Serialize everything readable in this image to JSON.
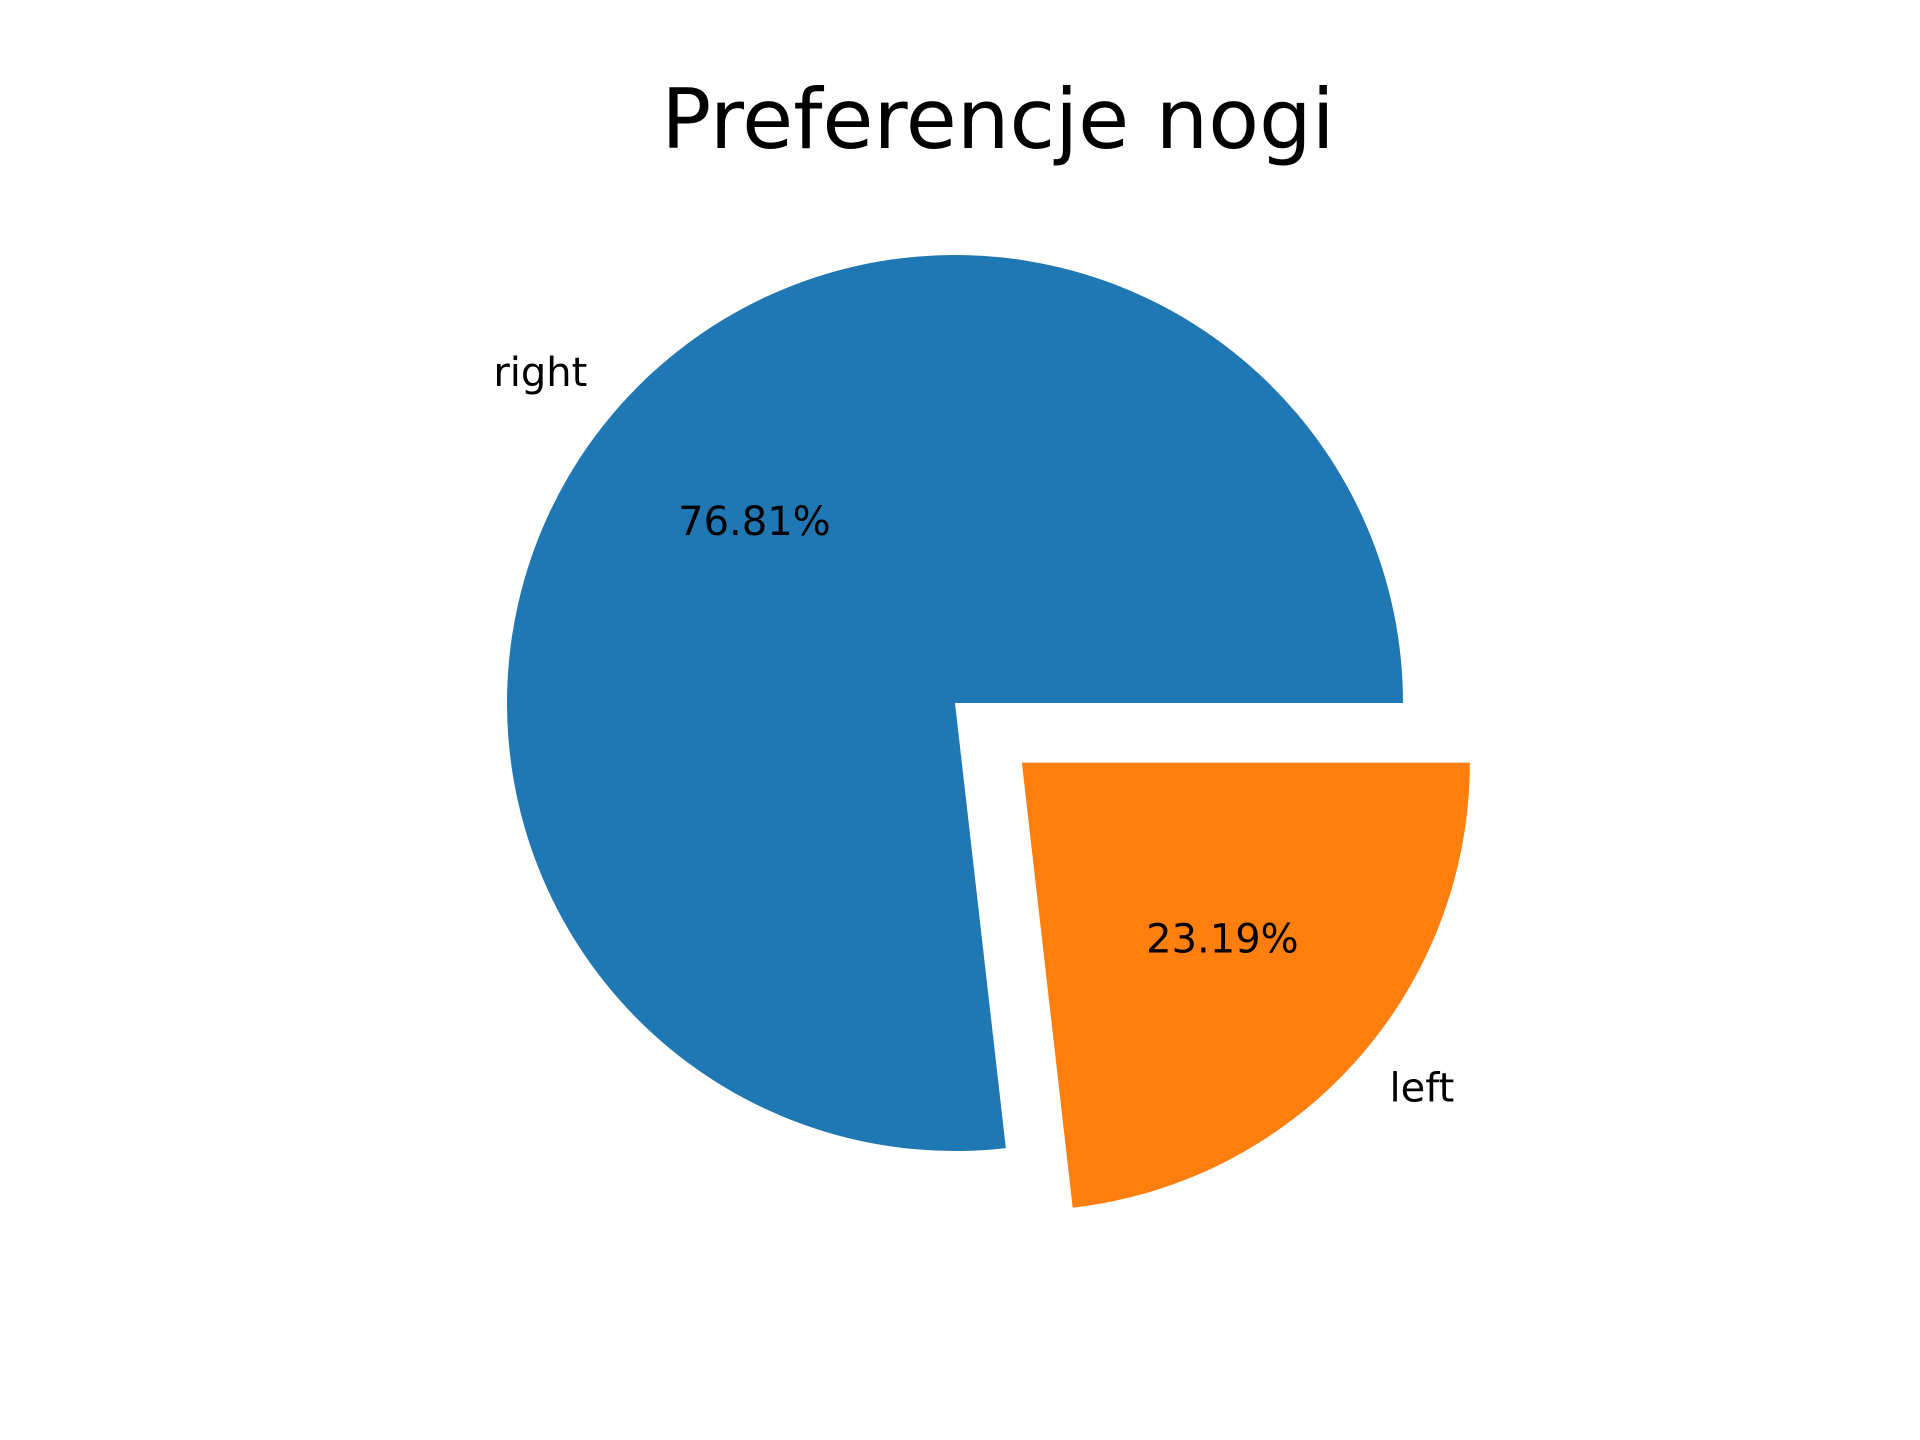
{
  "chart_data": {
    "type": "pie",
    "title": "Preferencje nogi",
    "slices": [
      {
        "label": "right",
        "value": 76.81,
        "pct_label": "76.81%",
        "color": "#1f77b4",
        "explode": 0
      },
      {
        "label": "left",
        "value": 23.19,
        "pct_label": "23.19%",
        "color": "#ff7f0e",
        "explode": 0.2
      }
    ],
    "start_angle_deg": 0,
    "direction": "counterclockwise"
  }
}
